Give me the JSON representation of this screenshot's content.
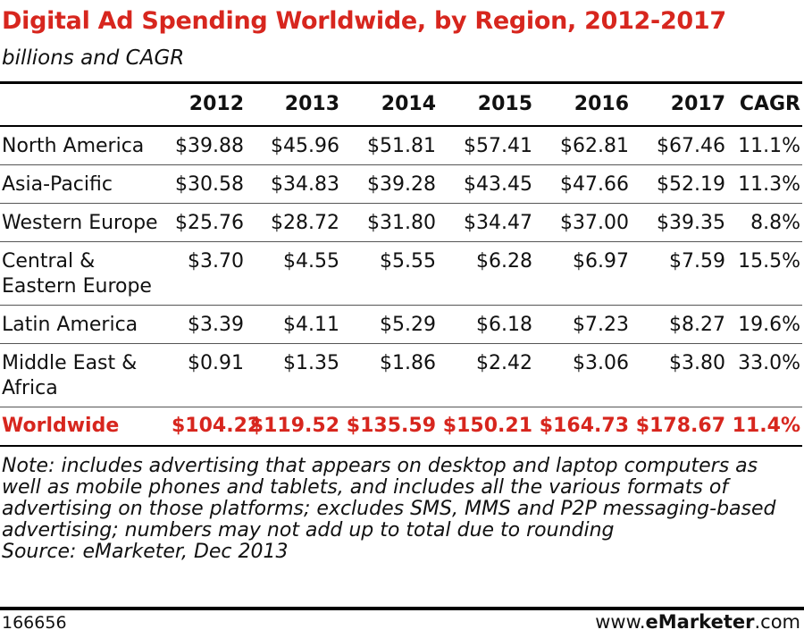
{
  "header": {
    "title": "Digital Ad Spending Worldwide, by Region, 2012-2017",
    "subtitle": "billions and CAGR"
  },
  "table": {
    "columns": [
      "2012",
      "2013",
      "2014",
      "2015",
      "2016",
      "2017",
      "CAGR"
    ],
    "rows": [
      {
        "label": "North America",
        "cells": [
          "$39.88",
          "$45.96",
          "$51.81",
          "$57.41",
          "$62.81",
          "$67.46",
          "11.1%"
        ]
      },
      {
        "label": "Asia-Pacific",
        "cells": [
          "$30.58",
          "$34.83",
          "$39.28",
          "$43.45",
          "$47.66",
          "$52.19",
          "11.3%"
        ]
      },
      {
        "label": "Western Europe",
        "cells": [
          "$25.76",
          "$28.72",
          "$31.80",
          "$34.47",
          "$37.00",
          "$39.35",
          "8.8%"
        ]
      },
      {
        "label": "Central &\nEastern Europe",
        "cells": [
          "$3.70",
          "$4.55",
          "$5.55",
          "$6.28",
          "$6.97",
          "$7.59",
          "15.5%"
        ]
      },
      {
        "label": "Latin America",
        "cells": [
          "$3.39",
          "$4.11",
          "$5.29",
          "$6.18",
          "$7.23",
          "$8.27",
          "19.6%"
        ]
      },
      {
        "label": "Middle East &\nAfrica",
        "cells": [
          "$0.91",
          "$1.35",
          "$1.86",
          "$2.42",
          "$3.06",
          "$3.80",
          "33.0%"
        ]
      }
    ],
    "total": {
      "label": "Worldwide",
      "cells": [
        "$104.22",
        "$119.52",
        "$135.59",
        "$150.21",
        "$164.73",
        "$178.67",
        "11.4%"
      ]
    }
  },
  "note": "Note: includes advertising that appears on desktop and laptop computers as well as mobile phones and tablets, and includes all the various formats of advertising on those platforms; excludes SMS, MMS and P2P messaging-based advertising; numbers may not add up to total due to rounding",
  "source": "Source: eMarketer, Dec 2013",
  "footer": {
    "id": "166656",
    "site": [
      "www.",
      "eMarketer",
      ".com"
    ]
  }
}
